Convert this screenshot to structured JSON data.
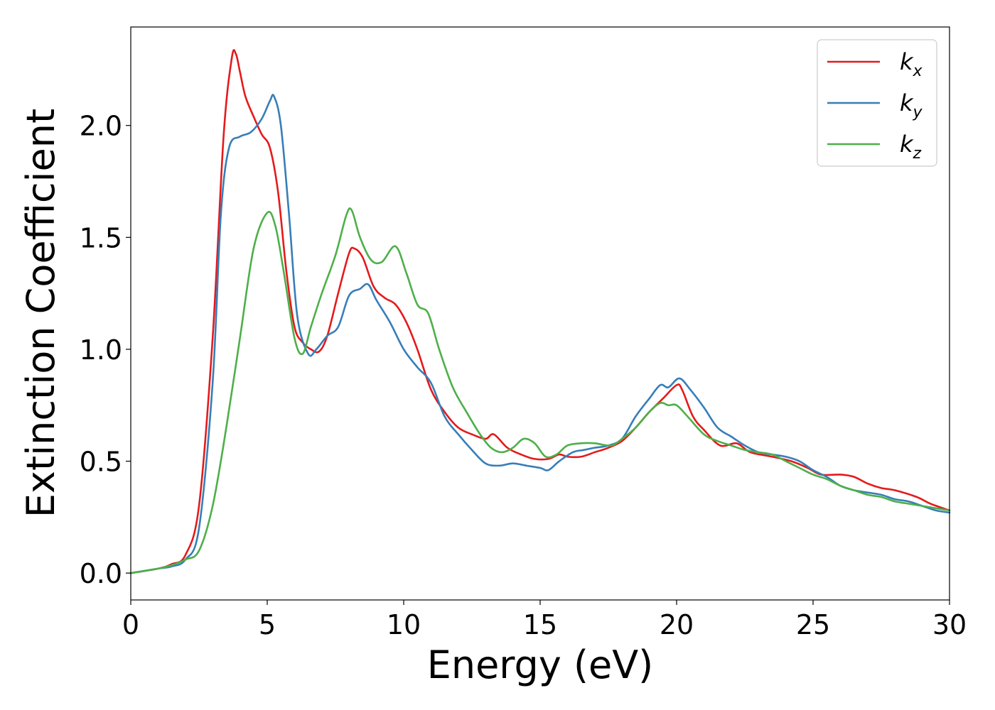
{
  "chart_data": {
    "type": "line",
    "title": "",
    "xlabel": "Energy (eV)",
    "ylabel": "Extinction Coefficient",
    "xlim": [
      0,
      30
    ],
    "ylim": [
      -0.12,
      2.44
    ],
    "xticks": [
      0,
      5,
      10,
      15,
      20,
      25,
      30
    ],
    "xtick_labels": [
      "0",
      "5",
      "10",
      "15",
      "20",
      "25",
      "30"
    ],
    "yticks": [
      0.0,
      0.5,
      1.0,
      1.5,
      2.0
    ],
    "ytick_labels": [
      "0.0",
      "0.5",
      "1.0",
      "1.5",
      "2.0"
    ],
    "grid": false,
    "legend_position": "top-right",
    "series": [
      {
        "name": "k_x",
        "label_main": "k",
        "label_sub": "x",
        "color": "#e41a1c",
        "points": [
          [
            0,
            0
          ],
          [
            1,
            0.02
          ],
          [
            1.5,
            0.04
          ],
          [
            2,
            0.08
          ],
          [
            2.5,
            0.3
          ],
          [
            3,
            1.05
          ],
          [
            3.4,
            1.95
          ],
          [
            3.7,
            2.3
          ],
          [
            3.85,
            2.32
          ],
          [
            4,
            2.24
          ],
          [
            4.2,
            2.13
          ],
          [
            4.5,
            2.04
          ],
          [
            4.8,
            1.96
          ],
          [
            5.1,
            1.9
          ],
          [
            5.4,
            1.7
          ],
          [
            5.7,
            1.35
          ],
          [
            6,
            1.1
          ],
          [
            6.3,
            1.03
          ],
          [
            6.6,
            1.0
          ],
          [
            6.9,
            0.99
          ],
          [
            7.2,
            1.06
          ],
          [
            7.6,
            1.25
          ],
          [
            8,
            1.43
          ],
          [
            8.2,
            1.45
          ],
          [
            8.5,
            1.41
          ],
          [
            8.9,
            1.28
          ],
          [
            9.3,
            1.23
          ],
          [
            9.7,
            1.2
          ],
          [
            10.1,
            1.12
          ],
          [
            10.5,
            1.0
          ],
          [
            11,
            0.82
          ],
          [
            11.5,
            0.72
          ],
          [
            12,
            0.65
          ],
          [
            12.5,
            0.62
          ],
          [
            13,
            0.6
          ],
          [
            13.3,
            0.62
          ],
          [
            13.8,
            0.56
          ],
          [
            14.3,
            0.53
          ],
          [
            14.8,
            0.51
          ],
          [
            15.3,
            0.51
          ],
          [
            15.7,
            0.53
          ],
          [
            16,
            0.52
          ],
          [
            16.5,
            0.52
          ],
          [
            17,
            0.54
          ],
          [
            17.5,
            0.56
          ],
          [
            18,
            0.59
          ],
          [
            18.5,
            0.65
          ],
          [
            19,
            0.72
          ],
          [
            19.5,
            0.78
          ],
          [
            20,
            0.84
          ],
          [
            20.2,
            0.82
          ],
          [
            20.6,
            0.7
          ],
          [
            21,
            0.64
          ],
          [
            21.6,
            0.57
          ],
          [
            22.2,
            0.58
          ],
          [
            22.7,
            0.54
          ],
          [
            23.5,
            0.52
          ],
          [
            24.2,
            0.5
          ],
          [
            24.8,
            0.47
          ],
          [
            25.3,
            0.44
          ],
          [
            26,
            0.44
          ],
          [
            26.5,
            0.43
          ],
          [
            27,
            0.4
          ],
          [
            27.5,
            0.38
          ],
          [
            28,
            0.37
          ],
          [
            28.8,
            0.34
          ],
          [
            29.3,
            0.31
          ],
          [
            30,
            0.28
          ]
        ]
      },
      {
        "name": "k_y",
        "label_main": "k",
        "label_sub": "y",
        "color": "#377eb8",
        "points": [
          [
            0,
            0
          ],
          [
            1,
            0.02
          ],
          [
            1.5,
            0.03
          ],
          [
            2,
            0.06
          ],
          [
            2.5,
            0.2
          ],
          [
            3,
            0.85
          ],
          [
            3.3,
            1.6
          ],
          [
            3.6,
            1.9
          ],
          [
            4,
            1.95
          ],
          [
            4.4,
            1.97
          ],
          [
            4.8,
            2.03
          ],
          [
            5.1,
            2.11
          ],
          [
            5.25,
            2.13
          ],
          [
            5.5,
            2.0
          ],
          [
            5.8,
            1.6
          ],
          [
            6.1,
            1.15
          ],
          [
            6.5,
            0.98
          ],
          [
            6.8,
            1.0
          ],
          [
            7.2,
            1.06
          ],
          [
            7.6,
            1.1
          ],
          [
            8,
            1.24
          ],
          [
            8.4,
            1.27
          ],
          [
            8.7,
            1.29
          ],
          [
            9,
            1.22
          ],
          [
            9.5,
            1.12
          ],
          [
            10,
            1.0
          ],
          [
            10.5,
            0.92
          ],
          [
            11,
            0.85
          ],
          [
            11.5,
            0.7
          ],
          [
            12,
            0.62
          ],
          [
            12.5,
            0.55
          ],
          [
            13,
            0.49
          ],
          [
            13.5,
            0.48
          ],
          [
            14,
            0.49
          ],
          [
            14.5,
            0.48
          ],
          [
            15,
            0.47
          ],
          [
            15.3,
            0.46
          ],
          [
            15.7,
            0.5
          ],
          [
            16.2,
            0.54
          ],
          [
            16.6,
            0.55
          ],
          [
            17,
            0.56
          ],
          [
            17.5,
            0.57
          ],
          [
            18,
            0.6
          ],
          [
            18.5,
            0.7
          ],
          [
            19,
            0.78
          ],
          [
            19.4,
            0.84
          ],
          [
            19.7,
            0.83
          ],
          [
            20.1,
            0.87
          ],
          [
            20.5,
            0.82
          ],
          [
            21,
            0.74
          ],
          [
            21.5,
            0.65
          ],
          [
            22,
            0.61
          ],
          [
            22.5,
            0.57
          ],
          [
            23,
            0.54
          ],
          [
            23.5,
            0.53
          ],
          [
            24,
            0.52
          ],
          [
            24.5,
            0.5
          ],
          [
            25,
            0.46
          ],
          [
            25.5,
            0.43
          ],
          [
            26,
            0.39
          ],
          [
            26.5,
            0.37
          ],
          [
            27,
            0.36
          ],
          [
            27.5,
            0.35
          ],
          [
            28,
            0.33
          ],
          [
            28.5,
            0.32
          ],
          [
            29,
            0.3
          ],
          [
            29.5,
            0.28
          ],
          [
            30,
            0.27
          ]
        ]
      },
      {
        "name": "k_z",
        "label_main": "k",
        "label_sub": "z",
        "color": "#4daf4a",
        "points": [
          [
            0,
            0
          ],
          [
            1,
            0.02
          ],
          [
            1.5,
            0.035
          ],
          [
            2,
            0.06
          ],
          [
            2.5,
            0.1
          ],
          [
            3,
            0.3
          ],
          [
            3.5,
            0.65
          ],
          [
            4,
            1.05
          ],
          [
            4.5,
            1.45
          ],
          [
            5,
            1.61
          ],
          [
            5.3,
            1.55
          ],
          [
            5.6,
            1.35
          ],
          [
            6,
            1.05
          ],
          [
            6.3,
            0.98
          ],
          [
            6.6,
            1.1
          ],
          [
            7,
            1.25
          ],
          [
            7.5,
            1.42
          ],
          [
            7.9,
            1.6
          ],
          [
            8.1,
            1.62
          ],
          [
            8.4,
            1.5
          ],
          [
            8.8,
            1.4
          ],
          [
            9.2,
            1.39
          ],
          [
            9.7,
            1.46
          ],
          [
            10.1,
            1.34
          ],
          [
            10.5,
            1.2
          ],
          [
            10.9,
            1.16
          ],
          [
            11.3,
            1.0
          ],
          [
            11.8,
            0.83
          ],
          [
            12.3,
            0.72
          ],
          [
            12.8,
            0.62
          ],
          [
            13.2,
            0.56
          ],
          [
            13.6,
            0.54
          ],
          [
            14,
            0.56
          ],
          [
            14.4,
            0.6
          ],
          [
            14.8,
            0.58
          ],
          [
            15.2,
            0.52
          ],
          [
            15.6,
            0.53
          ],
          [
            16,
            0.57
          ],
          [
            16.5,
            0.58
          ],
          [
            17,
            0.58
          ],
          [
            17.6,
            0.57
          ],
          [
            18,
            0.6
          ],
          [
            18.5,
            0.65
          ],
          [
            19,
            0.72
          ],
          [
            19.4,
            0.76
          ],
          [
            19.7,
            0.75
          ],
          [
            20,
            0.75
          ],
          [
            20.4,
            0.7
          ],
          [
            21,
            0.62
          ],
          [
            21.5,
            0.59
          ],
          [
            22,
            0.57
          ],
          [
            22.5,
            0.55
          ],
          [
            23,
            0.54
          ],
          [
            23.5,
            0.53
          ],
          [
            24,
            0.5
          ],
          [
            24.5,
            0.47
          ],
          [
            25,
            0.44
          ],
          [
            25.5,
            0.42
          ],
          [
            26,
            0.39
          ],
          [
            26.5,
            0.37
          ],
          [
            27,
            0.35
          ],
          [
            27.5,
            0.34
          ],
          [
            28,
            0.32
          ],
          [
            28.5,
            0.31
          ],
          [
            29,
            0.3
          ],
          [
            30,
            0.28
          ]
        ]
      }
    ]
  }
}
